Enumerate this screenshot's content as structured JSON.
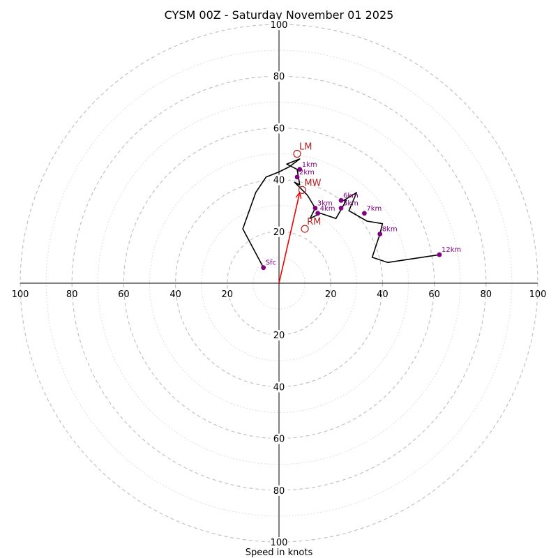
{
  "chart_data": {
    "type": "hodograph",
    "title": "CYSM 00Z - Saturday November 01 2025",
    "xlabel": "Speed in knots",
    "range_max": 100,
    "ring_major_step": 20,
    "ring_minor_step": 10,
    "ticks": {
      "top": [
        "20",
        "40",
        "60",
        "80",
        "100"
      ],
      "bottom": [
        "20",
        "40",
        "60",
        "80",
        "100"
      ],
      "left": [
        "20",
        "40",
        "60",
        "80",
        "100"
      ],
      "right": [
        "20",
        "40",
        "60",
        "80",
        "100"
      ]
    },
    "trace": {
      "u": [
        -6,
        -14,
        -9,
        -5,
        0,
        4,
        8,
        3,
        7,
        8,
        6,
        8,
        11,
        14,
        12,
        16,
        22,
        26,
        24,
        25,
        30,
        27,
        34,
        40,
        39,
        37,
        36,
        42,
        62
      ],
      "v": [
        6,
        21,
        35,
        41,
        43,
        45,
        48,
        46,
        44,
        38,
        39,
        37,
        34,
        29,
        25,
        27,
        25,
        32,
        32,
        32,
        35,
        28,
        24,
        23,
        19,
        13,
        10,
        8,
        11
      ],
      "color": "#000000"
    },
    "height_markers": [
      {
        "label": "Sfc",
        "u": -6,
        "v": 6
      },
      {
        "label": "1km",
        "u": 8,
        "v": 44
      },
      {
        "label": "2km",
        "u": 7,
        "v": 41
      },
      {
        "label": "3km",
        "u": 14,
        "v": 29
      },
      {
        "label": "4km",
        "u": 15,
        "v": 27
      },
      {
        "label": "5km",
        "u": 24,
        "v": 29
      },
      {
        "label": "6km",
        "u": 24,
        "v": 32
      },
      {
        "label": "7km",
        "u": 33,
        "v": 27
      },
      {
        "label": "8km",
        "u": 39,
        "v": 19
      },
      {
        "label": "12km",
        "u": 62,
        "v": 11
      }
    ],
    "marker_color": "#800080",
    "motions": [
      {
        "label": "LM",
        "u": 7,
        "v": 50
      },
      {
        "label": "MW",
        "u": 9,
        "v": 36
      },
      {
        "label": "RM",
        "u": 10,
        "v": 21
      }
    ],
    "motion_color": "#b22222",
    "storm_vector": {
      "u": 8,
      "v": 35,
      "color": "#ee0000"
    }
  }
}
